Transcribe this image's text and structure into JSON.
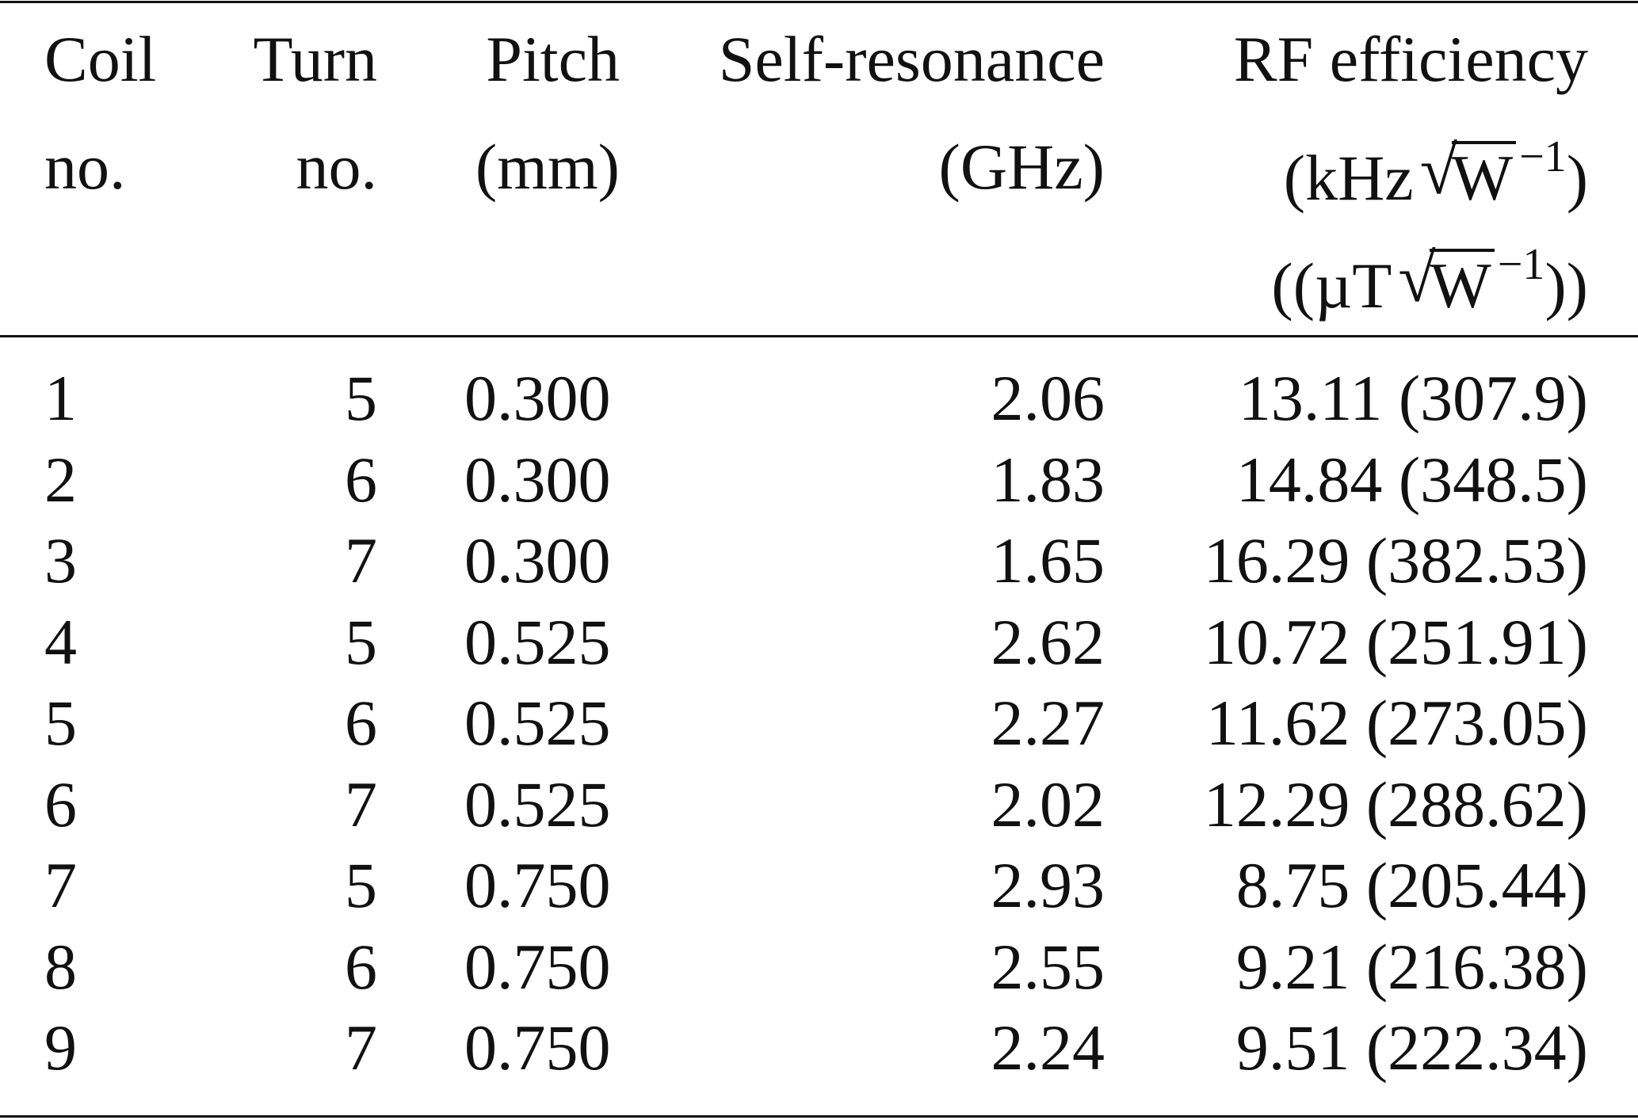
{
  "headers": {
    "coil": [
      "Coil",
      "no."
    ],
    "turn": [
      "Turn",
      "no."
    ],
    "pitch": [
      "Pitch",
      "(mm)"
    ],
    "self_resonance": [
      "Self-resonance",
      "(GHz)"
    ],
    "rf_efficiency": {
      "title": "RF efficiency",
      "unit1_prefix": "(kHz",
      "unit1_radicand": "W",
      "unit1_exp": "−1",
      "unit1_suffix": ")",
      "unit2_prefix": "((µT",
      "unit2_radicand": "W",
      "unit2_exp": "−1",
      "unit2_suffix": "))"
    }
  },
  "rows": [
    {
      "coil": "1",
      "turn": "5",
      "pitch": "0.300",
      "sr": "2.06",
      "rf": "13.11 (307.9)"
    },
    {
      "coil": "2",
      "turn": "6",
      "pitch": "0.300",
      "sr": "1.83",
      "rf": "14.84 (348.5)"
    },
    {
      "coil": "3",
      "turn": "7",
      "pitch": "0.300",
      "sr": "1.65",
      "rf": "16.29 (382.53)"
    },
    {
      "coil": "4",
      "turn": "5",
      "pitch": "0.525",
      "sr": "2.62",
      "rf": "10.72 (251.91)"
    },
    {
      "coil": "5",
      "turn": "6",
      "pitch": "0.525",
      "sr": "2.27",
      "rf": "11.62 (273.05)"
    },
    {
      "coil": "6",
      "turn": "7",
      "pitch": "0.525",
      "sr": "2.02",
      "rf": "12.29 (288.62)"
    },
    {
      "coil": "7",
      "turn": "5",
      "pitch": "0.750",
      "sr": "2.93",
      "rf": "8.75 (205.44)"
    },
    {
      "coil": "8",
      "turn": "6",
      "pitch": "0.750",
      "sr": "2.55",
      "rf": "9.21 (216.38)"
    },
    {
      "coil": "9",
      "turn": "7",
      "pitch": "0.750",
      "sr": "2.24",
      "rf": "9.51 (222.34)"
    }
  ]
}
